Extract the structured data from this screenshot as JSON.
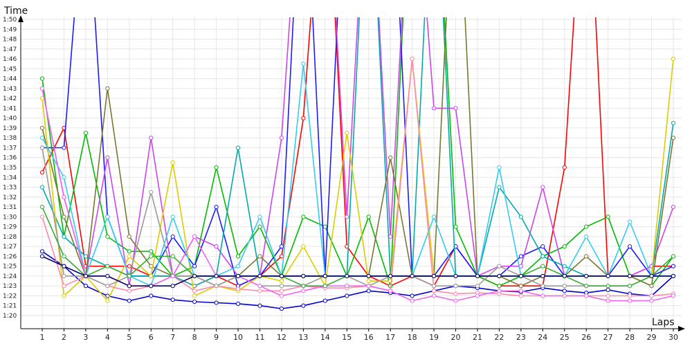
{
  "chart_data": {
    "type": "line",
    "title": "",
    "xlabel": "Laps",
    "ylabel": "Time",
    "x": [
      1,
      2,
      3,
      4,
      5,
      6,
      7,
      8,
      9,
      10,
      11,
      12,
      13,
      14,
      15,
      16,
      17,
      18,
      19,
      20,
      21,
      22,
      23,
      24,
      25,
      26,
      27,
      28,
      29,
      30
    ],
    "xlim": [
      0.5,
      30.5
    ],
    "ylim_seconds": [
      78,
      112
    ],
    "y_tick_labels": [
      "1:20",
      "1:21",
      "1:22",
      "1:23",
      "1:24",
      "1:25",
      "1:26",
      "1:27",
      "1:28",
      "1:29",
      "1:30",
      "1:31",
      "1:32",
      "1:33",
      "1:34",
      "1:35",
      "1:36",
      "1:37",
      "1:38",
      "1:39",
      "1:40",
      "1:41",
      "1:42",
      "1:43",
      "1:44",
      "1:45",
      "1:46",
      "1:47",
      "1:48",
      "1:49",
      "1:50"
    ],
    "y_ticks_seconds": [
      80,
      81,
      82,
      83,
      84,
      85,
      86,
      87,
      88,
      89,
      90,
      91,
      92,
      93,
      94,
      95,
      96,
      97,
      98,
      99,
      100,
      101,
      102,
      103,
      104,
      105,
      106,
      107,
      108,
      109,
      110
    ],
    "grid": true,
    "legend": "none",
    "series": [
      {
        "color": "#0000cc",
        "values": [
          86.5,
          85,
          83,
          82,
          81.5,
          82,
          81.6,
          81.4,
          81.3,
          81.2,
          81,
          80.7,
          81,
          81.5,
          82,
          82.5,
          82.3,
          82,
          82.5,
          83,
          82.8,
          82.5,
          82.4,
          82.8,
          82.5,
          82.3,
          82.6,
          82.2,
          82,
          84
        ]
      },
      {
        "color": "#ff0000",
        "values": [
          94.5,
          99,
          85,
          85,
          85,
          84,
          84,
          83,
          84,
          83,
          84,
          86,
          100,
          130,
          87,
          84,
          83,
          84,
          83,
          87,
          84,
          83,
          83,
          83,
          95,
          130,
          84,
          84,
          85,
          85
        ]
      },
      {
        "color": "#00bb00",
        "values": [
          104,
          88,
          98.5,
          88,
          86.5,
          86.5,
          84,
          85,
          95,
          86,
          89,
          84,
          90,
          89,
          84,
          90,
          83,
          130,
          130,
          89,
          84,
          83,
          84,
          86,
          87,
          89,
          90,
          84,
          83,
          86
        ]
      },
      {
        "color": "#1a1aff",
        "values": [
          97,
          97,
          125,
          90,
          84,
          84,
          88,
          85,
          91,
          83,
          84,
          87,
          130,
          84,
          130,
          130,
          130,
          84,
          84,
          87,
          84,
          84,
          86,
          87,
          84,
          84,
          84,
          87,
          84,
          85
        ]
      },
      {
        "color": "#cc44ee",
        "values": [
          103,
          92,
          84,
          96,
          83,
          98,
          84,
          88,
          87,
          84,
          84,
          98,
          130,
          130,
          90,
          130,
          88,
          130,
          101,
          101,
          84,
          85,
          85,
          93,
          84,
          84,
          84,
          84,
          85,
          91
        ]
      },
      {
        "color": "#00aaaa",
        "values": [
          93,
          88,
          86,
          85,
          84,
          84,
          84,
          83,
          84,
          97,
          84,
          84,
          84,
          84,
          84,
          130,
          84,
          84,
          130,
          84,
          84,
          93,
          90,
          86,
          85,
          84,
          84,
          84,
          84,
          99.5
        ]
      },
      {
        "color": "#777733",
        "values": [
          99,
          90,
          84,
          103,
          88,
          85,
          84,
          84,
          83,
          84,
          86,
          84,
          84,
          84,
          84,
          84,
          96,
          84,
          84,
          130,
          84,
          84,
          83,
          84,
          84,
          86,
          84,
          84,
          83,
          98
        ]
      },
      {
        "color": "#ddcc00",
        "values": [
          102,
          82,
          84,
          81.5,
          86,
          84,
          95.5,
          82,
          83,
          82.5,
          84,
          83.5,
          87,
          83,
          98.5,
          83.5,
          83.5,
          106,
          84,
          84,
          84,
          84,
          84,
          84,
          84,
          84,
          84,
          84,
          84,
          106
        ]
      },
      {
        "color": "#ff88aa",
        "values": [
          90,
          83,
          84,
          83,
          82.5,
          83,
          84,
          82.5,
          83,
          82.7,
          82.5,
          82.5,
          83,
          82.8,
          82.8,
          83,
          82.5,
          106,
          82.5,
          82.2,
          82.3,
          82.2,
          82,
          82,
          82,
          82,
          82,
          82,
          82,
          82.2
        ]
      },
      {
        "color": "#999999",
        "values": [
          97,
          84,
          84,
          83,
          84,
          92.5,
          84,
          84,
          83,
          84,
          83,
          83,
          83,
          84,
          84,
          83,
          84,
          84,
          83,
          83,
          83,
          85,
          84,
          83,
          83,
          83,
          83,
          83,
          84,
          84
        ]
      },
      {
        "color": "#33ccee",
        "values": [
          98,
          94,
          84,
          90,
          84,
          83,
          90,
          84,
          84,
          85,
          90,
          84,
          105.5,
          84,
          84,
          84,
          84,
          84,
          90,
          84,
          84,
          95,
          84,
          84,
          84,
          88,
          84,
          89.5,
          84,
          84
        ]
      },
      {
        "color": "#ee66ee",
        "values": [
          103,
          92,
          84,
          84,
          83,
          83,
          84,
          88,
          84,
          84,
          83,
          82,
          82.5,
          83,
          83,
          83,
          82.5,
          81.5,
          82,
          81.5,
          82,
          82.5,
          82.5,
          82,
          82,
          82,
          81.5,
          81.5,
          81.5,
          82
        ]
      },
      {
        "color": "#33aa33",
        "values": [
          91,
          86,
          84,
          85,
          84,
          86,
          86,
          84,
          84,
          84,
          84,
          84,
          83,
          83,
          84,
          84,
          84,
          84,
          84,
          84,
          84,
          84,
          84,
          85,
          84,
          83,
          83,
          83,
          84,
          86
        ]
      },
      {
        "color": "#000066",
        "values": [
          86,
          85,
          84,
          84,
          83,
          83,
          83,
          84,
          84,
          84,
          84,
          84,
          84,
          84,
          84,
          84,
          84,
          84,
          84,
          84,
          84,
          84,
          84,
          84,
          84,
          84,
          84,
          84,
          84,
          84
        ]
      }
    ]
  }
}
